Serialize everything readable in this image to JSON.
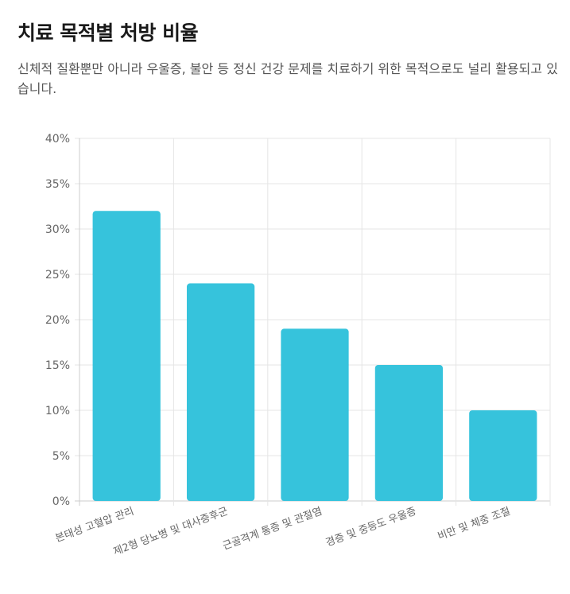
{
  "title": "치료 목적별 처방 비율",
  "subtitle": "신체적 질환뿐만 아니라 우울증, 불안 등 정신 건강 문제를 치료하기 위한 목적으로도 널리 활용되고 있습니다.",
  "colors": {
    "bar": "#36c3dc",
    "grid": "#e5e5e5",
    "axis": "#cccccc"
  },
  "chart_data": {
    "type": "bar",
    "categories": [
      "본태성 고혈압 관리",
      "제2형 당뇨병 및 대사증후군",
      "근골격계 통증 및 관절염",
      "경증 및 중등도 우울증",
      "비만 및 체중 조절"
    ],
    "values": [
      32,
      24,
      19,
      15,
      10
    ],
    "ylim": [
      0,
      40
    ],
    "yticks": [
      "0%",
      "5%",
      "10%",
      "15%",
      "20%",
      "25%",
      "30%",
      "35%",
      "40%"
    ],
    "grid": true,
    "legend": "none"
  }
}
